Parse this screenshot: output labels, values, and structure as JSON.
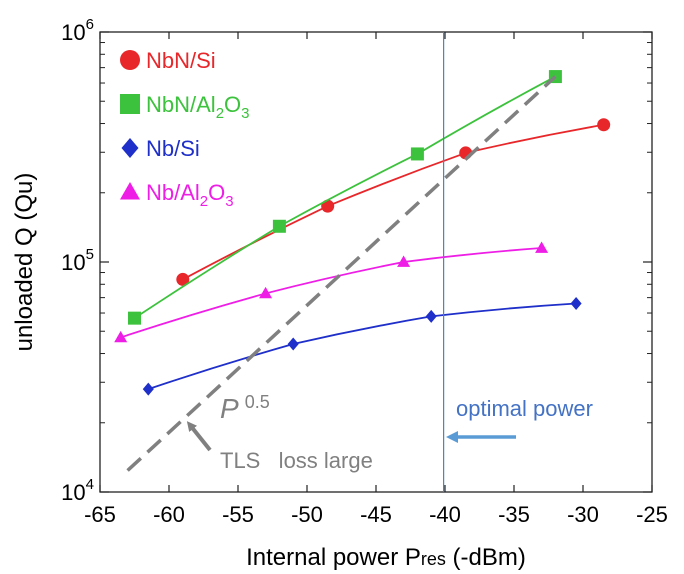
{
  "chart_data": {
    "type": "line",
    "x_scale": "linear",
    "y_scale": "log",
    "xlim": [
      -65,
      -25
    ],
    "ylim": [
      10000,
      1000000
    ],
    "x_ticks": [
      "-65",
      "-60",
      "-55",
      "-50",
      "-45",
      "-40",
      "-35",
      "-30",
      "-25"
    ],
    "y_ticks": [
      {
        "base": "10",
        "exp": "4"
      },
      {
        "base": "10",
        "exp": "5"
      },
      {
        "base": "10",
        "exp": "6"
      }
    ],
    "xlabel": {
      "prefix": "Internal power P",
      "sub": "res",
      "suffix": " (-dBm)"
    },
    "ylabel": "unloaded Q (Qu)",
    "grid": false,
    "legend_position": "top-left",
    "series": [
      {
        "name": "NbN/Si",
        "name_parts": [
          {
            "t": "NbN/Si"
          }
        ],
        "color": "#e8272b",
        "marker": "circle",
        "points": [
          [
            -59,
            84000
          ],
          [
            -48.5,
            175000
          ],
          [
            -38.5,
            298000
          ],
          [
            -28.5,
            395000
          ]
        ]
      },
      {
        "name": "NbN/Al2O3",
        "name_parts": [
          {
            "t": "NbN/Al"
          },
          {
            "t": "2",
            "sub": true
          },
          {
            "t": "O"
          },
          {
            "t": "3",
            "sub": true
          }
        ],
        "color": "#3cc23c",
        "marker": "square",
        "points": [
          [
            -62.5,
            57000
          ],
          [
            -52,
            143000
          ],
          [
            -42,
            295000
          ],
          [
            -32,
            640000
          ]
        ]
      },
      {
        "name": "Nb/Si",
        "name_parts": [
          {
            "t": "Nb/Si"
          }
        ],
        "color": "#1f2fc9",
        "marker": "diamond",
        "points": [
          [
            -61.5,
            28000
          ],
          [
            -51,
            44000
          ],
          [
            -41,
            58000
          ],
          [
            -30.5,
            66000
          ]
        ]
      },
      {
        "name": "Nb/Al2O3",
        "name_parts": [
          {
            "t": "Nb/Al"
          },
          {
            "t": "2",
            "sub": true
          },
          {
            "t": "O"
          },
          {
            "t": "3",
            "sub": true
          }
        ],
        "color": "#ee1ee6",
        "marker": "triangle",
        "points": [
          [
            -63.5,
            47000
          ],
          [
            -53,
            73000
          ],
          [
            -43,
            100000
          ],
          [
            -33,
            115000
          ]
        ]
      }
    ],
    "reference_line": {
      "style": "dashed",
      "color": "#808080",
      "points": [
        [
          -63,
          12400
        ],
        [
          -32,
          640000
        ]
      ]
    },
    "vertical_line": {
      "x": -40.1,
      "color": "#4f81bd"
    },
    "annotations": {
      "slope_label": {
        "base": "P",
        "exp": "0.5",
        "color": "#808080"
      },
      "tls_label": {
        "text": "TLS   loss large",
        "color": "#808080"
      },
      "optimal_label": {
        "text": "optimal power",
        "color": "#4472c4"
      }
    }
  }
}
